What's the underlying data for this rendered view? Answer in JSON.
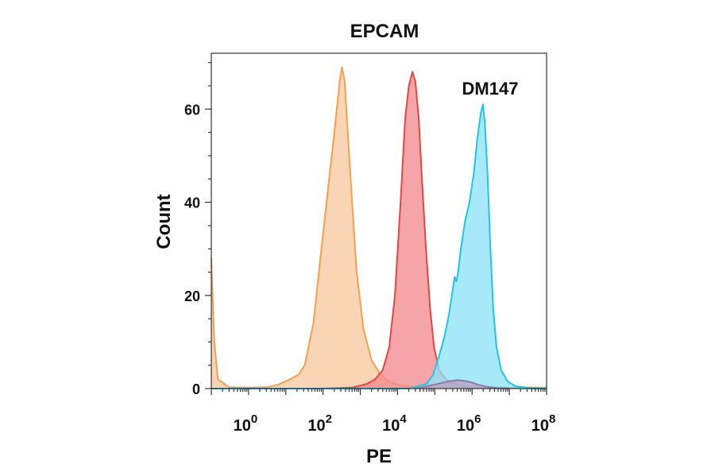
{
  "chart_data": {
    "type": "area",
    "title": "EPCAM",
    "xlabel": "PE",
    "ylabel": "Count",
    "annotation": "DM147",
    "x_scale": "log10",
    "xlim": [
      0.1,
      100000000
    ],
    "ylim": [
      0,
      72
    ],
    "y_ticks": [
      "0",
      "20",
      "40",
      "60"
    ],
    "x_ticks": [
      {
        "base": "10",
        "exp": "0"
      },
      {
        "base": "10",
        "exp": "2"
      },
      {
        "base": "10",
        "exp": "4"
      },
      {
        "base": "10",
        "exp": "6"
      },
      {
        "base": "10",
        "exp": "8"
      }
    ],
    "series": [
      {
        "color": "#F4A050",
        "fill": "#F8C9A0",
        "points": [
          [
            0.1,
            28
          ],
          [
            0.12,
            10
          ],
          [
            0.15,
            2
          ],
          [
            0.3,
            0.3
          ],
          [
            1,
            0.2
          ],
          [
            3,
            0.3
          ],
          [
            6,
            0.8
          ],
          [
            13,
            2
          ],
          [
            22,
            3
          ],
          [
            32,
            5
          ],
          [
            55,
            14
          ],
          [
            90,
            30
          ],
          [
            150,
            46
          ],
          [
            220,
            58
          ],
          [
            280,
            66
          ],
          [
            320,
            69
          ],
          [
            380,
            66
          ],
          [
            460,
            55
          ],
          [
            600,
            40
          ],
          [
            800,
            25
          ],
          [
            1200,
            13
          ],
          [
            2000,
            6
          ],
          [
            3500,
            3
          ],
          [
            6000,
            1.5
          ],
          [
            10000,
            0.8
          ],
          [
            20000,
            0.4
          ],
          [
            50000,
            0.3
          ],
          [
            100000,
            0.2
          ],
          [
            300000,
            0.2
          ],
          [
            1000000,
            0.2
          ],
          [
            10000000,
            0.2
          ],
          [
            100000000,
            0.2
          ]
        ]
      },
      {
        "color": "#E04848",
        "fill": "#F28A8E",
        "points": [
          [
            0.1,
            0
          ],
          [
            100,
            0
          ],
          [
            600,
            0.2
          ],
          [
            1500,
            1
          ],
          [
            2500,
            2
          ],
          [
            4000,
            4
          ],
          [
            6000,
            9
          ],
          [
            8500,
            20
          ],
          [
            12000,
            40
          ],
          [
            16000,
            58
          ],
          [
            20000,
            65
          ],
          [
            25000,
            68
          ],
          [
            30000,
            66
          ],
          [
            37000,
            58
          ],
          [
            45000,
            45
          ],
          [
            58000,
            30
          ],
          [
            75000,
            17
          ],
          [
            95000,
            9
          ],
          [
            130000,
            4
          ],
          [
            200000,
            2
          ],
          [
            400000,
            0.8
          ],
          [
            1000000,
            0.3
          ],
          [
            10000000,
            0.1
          ],
          [
            100000000,
            0
          ]
        ]
      },
      {
        "color": "#22C4E8",
        "fill": "#8EE3F7",
        "points": [
          [
            0.1,
            0
          ],
          [
            20000,
            0
          ],
          [
            60000,
            1
          ],
          [
            90000,
            3
          ],
          [
            130000,
            7
          ],
          [
            180000,
            11
          ],
          [
            240000,
            16
          ],
          [
            300000,
            21
          ],
          [
            340000,
            24
          ],
          [
            380000,
            23
          ],
          [
            420000,
            25
          ],
          [
            500000,
            30
          ],
          [
            650000,
            36
          ],
          [
            850000,
            40
          ],
          [
            1100000,
            46
          ],
          [
            1400000,
            54
          ],
          [
            1700000,
            59
          ],
          [
            1950000,
            61
          ],
          [
            2200000,
            57
          ],
          [
            2600000,
            46
          ],
          [
            3100000,
            30
          ],
          [
            3700000,
            17
          ],
          [
            4500000,
            9
          ],
          [
            6000000,
            4
          ],
          [
            9000000,
            1.5
          ],
          [
            15000000,
            0.5
          ],
          [
            30000000,
            0.2
          ],
          [
            100000000,
            0
          ]
        ]
      },
      {
        "color": "#8E7BA8",
        "fill": "#B8A3BF",
        "points": [
          [
            30000,
            0
          ],
          [
            60000,
            0.5
          ],
          [
            120000,
            1
          ],
          [
            220000,
            1.5
          ],
          [
            400000,
            1.8
          ],
          [
            700000,
            1.6
          ],
          [
            1000000,
            1.3
          ],
          [
            1500000,
            0.8
          ],
          [
            2500000,
            0.4
          ],
          [
            5000000,
            0.1
          ],
          [
            10000000,
            0
          ]
        ]
      }
    ]
  }
}
